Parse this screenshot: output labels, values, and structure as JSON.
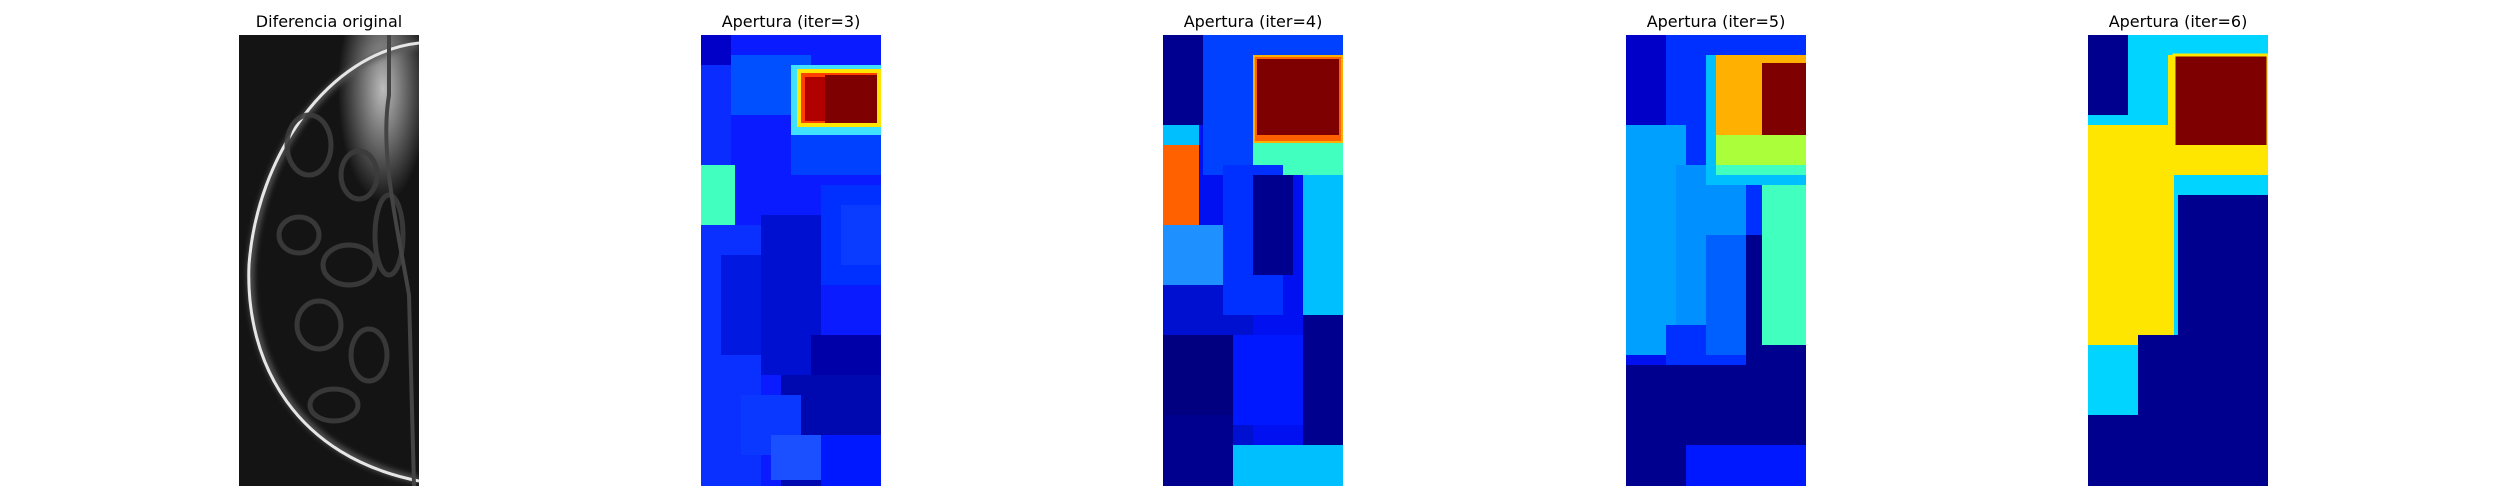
{
  "figure": {
    "panels": [
      {
        "title": "Diferencia original",
        "kind": "grayscale"
      },
      {
        "title": "Apertura (iter=3)",
        "kind": "jet"
      },
      {
        "title": "Apertura (iter=4)",
        "kind": "jet"
      },
      {
        "title": "Apertura (iter=5)",
        "kind": "jet"
      },
      {
        "title": "Apertura (iter=6)",
        "kind": "jet"
      }
    ],
    "colors": {
      "background": "#ffffff",
      "navy": "#00008f",
      "blue": "#0000ff",
      "medium_blue": "#0a2cff",
      "light_blue": "#1e90ff",
      "cyan": "#00bfff",
      "aqua": "#00d4ff",
      "teal": "#40ffbf",
      "yellow_green": "#aaff3a",
      "yellow": "#ffe600",
      "orange": "#ffb000",
      "red_orange": "#ff6000",
      "red": "#b00000",
      "dark_red": "#7f0000"
    }
  }
}
